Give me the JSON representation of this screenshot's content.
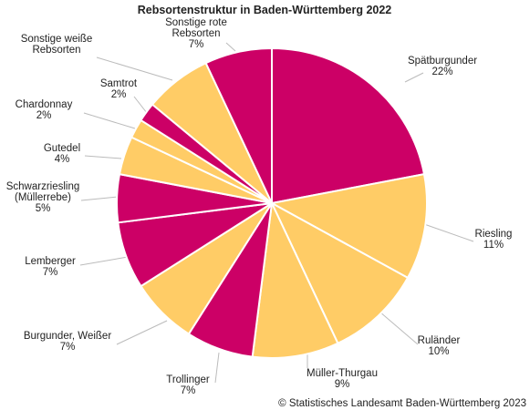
{
  "chart_data": {
    "type": "pie",
    "title": "Rebsortenstruktur in Baden-Württemberg 2022",
    "credit": "© Statistisches Landesamt Baden-Württemberg 2023",
    "slices": [
      {
        "name": "Spätburgunder",
        "label_lines": [
          "Spätburgunder",
          "22%"
        ],
        "value": 22,
        "color": "#cc0066"
      },
      {
        "name": "Riesling",
        "label_lines": [
          "Riesling",
          "11%"
        ],
        "value": 11,
        "color": "#ffcc66"
      },
      {
        "name": "Ruländer",
        "label_lines": [
          "Ruländer",
          "10%"
        ],
        "value": 10,
        "color": "#ffcc66"
      },
      {
        "name": "Müller-Thurgau",
        "label_lines": [
          "Müller-Thurgau",
          "9%"
        ],
        "value": 9,
        "color": "#ffcc66"
      },
      {
        "name": "Trollinger",
        "label_lines": [
          "Trollinger",
          "7%"
        ],
        "value": 7,
        "color": "#cc0066"
      },
      {
        "name": "Burgunder, Weißer",
        "label_lines": [
          "Burgunder, Weißer",
          "7%"
        ],
        "value": 7,
        "color": "#ffcc66"
      },
      {
        "name": "Lemberger",
        "label_lines": [
          "Lemberger",
          "7%"
        ],
        "value": 7,
        "color": "#cc0066"
      },
      {
        "name": "Schwarzriesling (Müllerrebe)",
        "label_lines": [
          "Schwarzriesling",
          "(Müllerrebe)",
          "5%"
        ],
        "value": 5,
        "color": "#cc0066"
      },
      {
        "name": "Gutedel",
        "label_lines": [
          "Gutedel",
          "4%"
        ],
        "value": 4,
        "color": "#ffcc66"
      },
      {
        "name": "Chardonnay",
        "label_lines": [
          "Chardonnay",
          "2%"
        ],
        "value": 2,
        "color": "#ffcc66"
      },
      {
        "name": "Samtrot",
        "label_lines": [
          "Samtrot",
          "2%"
        ],
        "value": 2,
        "color": "#cc0066"
      },
      {
        "name": "Sonstige weiße Rebsorten",
        "label_lines": [
          "Sonstige weiße",
          "Rebsorten"
        ],
        "value": 7,
        "color": "#ffcc66"
      },
      {
        "name": "Sonstige rote Rebsorten",
        "label_lines": [
          "Sonstige rote",
          "Rebsorten",
          "7%"
        ],
        "value": 7,
        "color": "#cc0066"
      }
    ]
  }
}
